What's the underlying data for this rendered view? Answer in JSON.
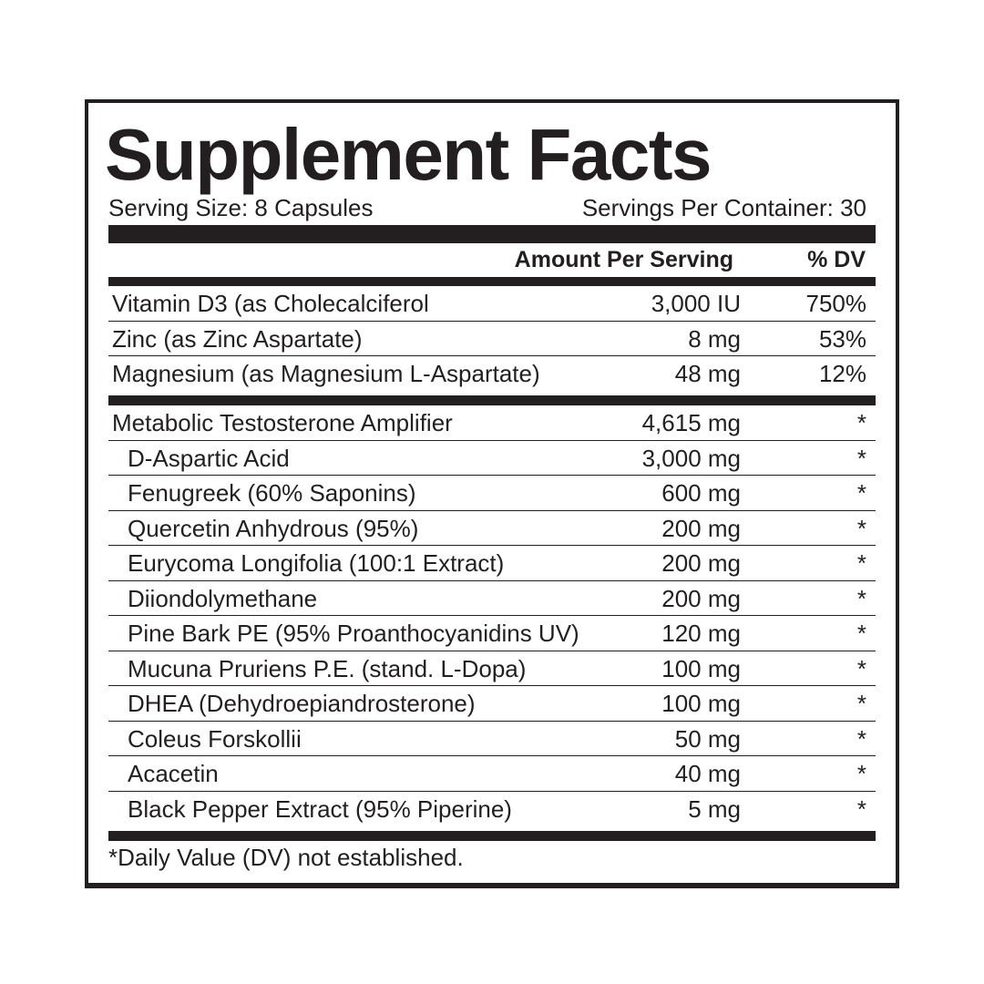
{
  "title": "Supplement Facts",
  "serving_size": "Serving Size: 8 Capsules",
  "servings_per_container": "Servings Per Container: 30",
  "header": {
    "amount": "Amount Per Serving",
    "dv": "% DV"
  },
  "vitamins": [
    {
      "name": "Vitamin D3 (as Cholecalciferol",
      "amount": "3,000 IU",
      "dv": "750%"
    },
    {
      "name": "Zinc (as Zinc Aspartate)",
      "amount": "8 mg",
      "dv": "53%"
    },
    {
      "name": "Magnesium (as Magnesium L-Aspartate)",
      "amount": "48 mg",
      "dv": "12%"
    }
  ],
  "blend": [
    {
      "name": "Metabolic Testosterone Amplifier",
      "amount": "4,615 mg",
      "dv": "*",
      "sub": false
    },
    {
      "name": "D-Aspartic Acid",
      "amount": "3,000 mg",
      "dv": "*",
      "sub": true
    },
    {
      "name": "Fenugreek (60% Saponins)",
      "amount": "600 mg",
      "dv": "*",
      "sub": true
    },
    {
      "name": "Quercetin Anhydrous (95%)",
      "amount": "200 mg",
      "dv": "*",
      "sub": true
    },
    {
      "name": "Eurycoma Longifolia (100:1 Extract)",
      "amount": "200 mg",
      "dv": "*",
      "sub": true
    },
    {
      "name": "Diiondolymethane",
      "amount": "200 mg",
      "dv": "*",
      "sub": true
    },
    {
      "name": "Pine Bark PE (95% Proanthocyanidins UV)",
      "amount": "120 mg",
      "dv": "*",
      "sub": true
    },
    {
      "name": "Mucuna Pruriens P.E. (stand. L-Dopa)",
      "amount": "100 mg",
      "dv": "*",
      "sub": true
    },
    {
      "name": "DHEA (Dehydroepiandrosterone)",
      "amount": "100 mg",
      "dv": "*",
      "sub": true
    },
    {
      "name": "Coleus Forskollii",
      "amount": "50 mg",
      "dv": "*",
      "sub": true
    },
    {
      "name": "Acacetin",
      "amount": "40 mg",
      "dv": "*",
      "sub": true
    },
    {
      "name": "Black Pepper Extract (95% Piperine)",
      "amount": "5 mg",
      "dv": "*",
      "sub": true
    }
  ],
  "footnote": "*Daily Value (DV) not established."
}
